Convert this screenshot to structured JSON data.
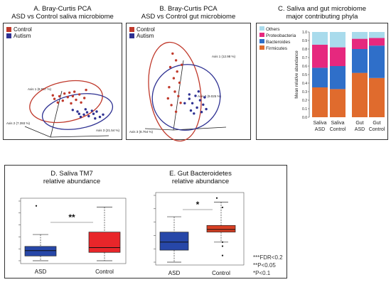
{
  "chart_data": [
    {
      "panel": "A",
      "type": "scatter",
      "title_line1": "A. Bray-Curtis PCA",
      "title_line2": "ASD vs Control saliva microbiome",
      "legend": [
        {
          "label": "Control",
          "color": "#c0392b"
        },
        {
          "label": "Autism",
          "color": "#2e3192"
        }
      ],
      "axis_labels": [
        "Axis 1 (8.907 %)",
        "Axis 2 (7.393 %)",
        "Axis 3 (21.54 %)"
      ],
      "series": [
        {
          "name": "Control",
          "points": [
            [
              -0.35,
              0.15
            ],
            [
              -0.2,
              0.3
            ],
            [
              -0.05,
              0.45
            ],
            [
              0.1,
              0.5
            ],
            [
              0.25,
              0.55
            ],
            [
              0.4,
              0.4
            ],
            [
              0.55,
              0.2
            ],
            [
              0.3,
              0.1
            ],
            [
              -0.1,
              0.05
            ],
            [
              0.15,
              -0.1
            ],
            [
              0.45,
              -0.05
            ],
            [
              -0.25,
              -0.05
            ],
            [
              0.05,
              0.25
            ],
            [
              0.6,
              0.65
            ],
            [
              0.2,
              0.3
            ],
            [
              -0.4,
              0.35
            ]
          ]
        },
        {
          "name": "Autism",
          "points": [
            [
              0.0,
              0.0
            ],
            [
              0.2,
              -0.2
            ],
            [
              0.35,
              -0.3
            ],
            [
              0.5,
              -0.15
            ],
            [
              0.6,
              0.0
            ],
            [
              0.7,
              -0.35
            ],
            [
              0.1,
              -0.35
            ],
            [
              0.45,
              0.05
            ],
            [
              -0.15,
              0.1
            ],
            [
              0.3,
              -0.05
            ],
            [
              0.55,
              -0.45
            ],
            [
              0.25,
              0.15
            ],
            [
              0.8,
              -0.2
            ],
            [
              0.05,
              -0.15
            ]
          ]
        }
      ]
    },
    {
      "panel": "B",
      "type": "scatter",
      "title_line1": "B. Bray-Curtis PCA",
      "title_line2": "ASD vs Control gut microbiome",
      "legend": [
        {
          "label": "Control",
          "color": "#c0392b"
        },
        {
          "label": "Autism",
          "color": "#2e3192"
        }
      ],
      "axis_labels": [
        "Axis 1 (12.98 %)",
        "Axis 2 (9.025 %)",
        "Axis 3 (8.764 %)"
      ],
      "series": [
        {
          "name": "Control",
          "points": [
            [
              -0.1,
              0.85
            ],
            [
              0.05,
              0.7
            ],
            [
              -0.2,
              0.55
            ],
            [
              0.1,
              0.45
            ],
            [
              -0.05,
              0.3
            ],
            [
              0.2,
              0.2
            ],
            [
              -0.25,
              0.1
            ],
            [
              0.0,
              0.0
            ],
            [
              0.15,
              -0.1
            ],
            [
              -0.15,
              -0.3
            ],
            [
              0.05,
              -0.45
            ],
            [
              0.25,
              -0.25
            ],
            [
              -0.3,
              -0.15
            ],
            [
              0.3,
              0.6
            ]
          ]
        },
        {
          "name": "Autism",
          "points": [
            [
              0.1,
              0.1
            ],
            [
              0.3,
              0.05
            ],
            [
              0.45,
              -0.1
            ],
            [
              0.2,
              -0.2
            ],
            [
              0.35,
              -0.35
            ],
            [
              0.55,
              -0.25
            ],
            [
              0.15,
              -0.45
            ],
            [
              0.4,
              0.2
            ],
            [
              0.6,
              0.0
            ],
            [
              -0.05,
              -0.2
            ],
            [
              0.5,
              -0.5
            ],
            [
              0.25,
              -0.55
            ],
            [
              0.65,
              -0.4
            ],
            [
              0.1,
              -0.05
            ]
          ]
        }
      ]
    },
    {
      "panel": "C",
      "type": "bar",
      "stacked": true,
      "title_line1": "C. Saliva and gut microbiome",
      "title_line2": "major contributing phyla",
      "ylabel": "Mean relative abundance",
      "ylim": [
        0,
        1
      ],
      "yticks": [
        "0.0",
        "0.1",
        "0.2",
        "0.3",
        "0.4",
        "0.5",
        "0.6",
        "0.7",
        "0.8",
        "0.9",
        "1.0"
      ],
      "categories": [
        {
          "line1": "Saliva",
          "line2": "ASD"
        },
        {
          "line1": "Saliva",
          "line2": "Control"
        },
        {
          "line1": "Gut",
          "line2": "ASD"
        },
        {
          "line1": "Gut",
          "line2": "Control"
        }
      ],
      "series": [
        {
          "name": "Firmicutes",
          "color": "#e06b2d",
          "values": [
            0.35,
            0.33,
            0.52,
            0.46
          ]
        },
        {
          "name": "Bacteroides",
          "color": "#2f6fc9",
          "values": [
            0.23,
            0.27,
            0.28,
            0.38
          ]
        },
        {
          "name": "Proteobacteria",
          "color": "#e6287e",
          "values": [
            0.27,
            0.22,
            0.12,
            0.09
          ]
        },
        {
          "name": "Others",
          "color": "#a9dbec",
          "values": [
            0.15,
            0.18,
            0.08,
            0.07
          ]
        }
      ],
      "legend_order": [
        "Others",
        "Proteobacteria",
        "Bacteroides",
        "Firmicutes"
      ]
    },
    {
      "panel": "D",
      "type": "box",
      "title_line1": "D. Saliva TM7",
      "title_line2": "relative abundance",
      "categories": [
        "ASD",
        "Control"
      ],
      "boxes": [
        {
          "name": "ASD",
          "color": "#2747a8",
          "min": 0.0,
          "q1": 0.08,
          "median": 0.17,
          "q3": 0.24,
          "max": 0.44,
          "outliers": [
            0.92
          ]
        },
        {
          "name": "Control",
          "color": "#e8262a",
          "min": 0.0,
          "q1": 0.14,
          "median": 0.22,
          "q3": 0.48,
          "max": 0.9,
          "outliers": []
        }
      ],
      "ylim": [
        0,
        1
      ],
      "significance": "**"
    },
    {
      "panel": "E",
      "type": "box",
      "title_line1": "E. Gut Bacteroidetes",
      "title_line2": "relative abundance",
      "categories": [
        "ASD",
        "Control"
      ],
      "boxes": [
        {
          "name": "ASD",
          "color": "#2747a8",
          "min": 0.0,
          "q1": 0.18,
          "median": 0.3,
          "q3": 0.45,
          "max": 0.68,
          "outliers": []
        },
        {
          "name": "Control",
          "color": "#d94024",
          "min": 0.3,
          "q1": 0.45,
          "median": 0.49,
          "q3": 0.55,
          "max": 0.9,
          "outliers": [
            0.96,
            0.82,
            0.3,
            0.24,
            0.1
          ]
        }
      ],
      "ylim": [
        0,
        1
      ],
      "significance": "*"
    }
  ],
  "footnote": {
    "line1": "***FDR<0.2",
    "line2": "**P<0.05",
    "line3": "*P<0.1"
  }
}
